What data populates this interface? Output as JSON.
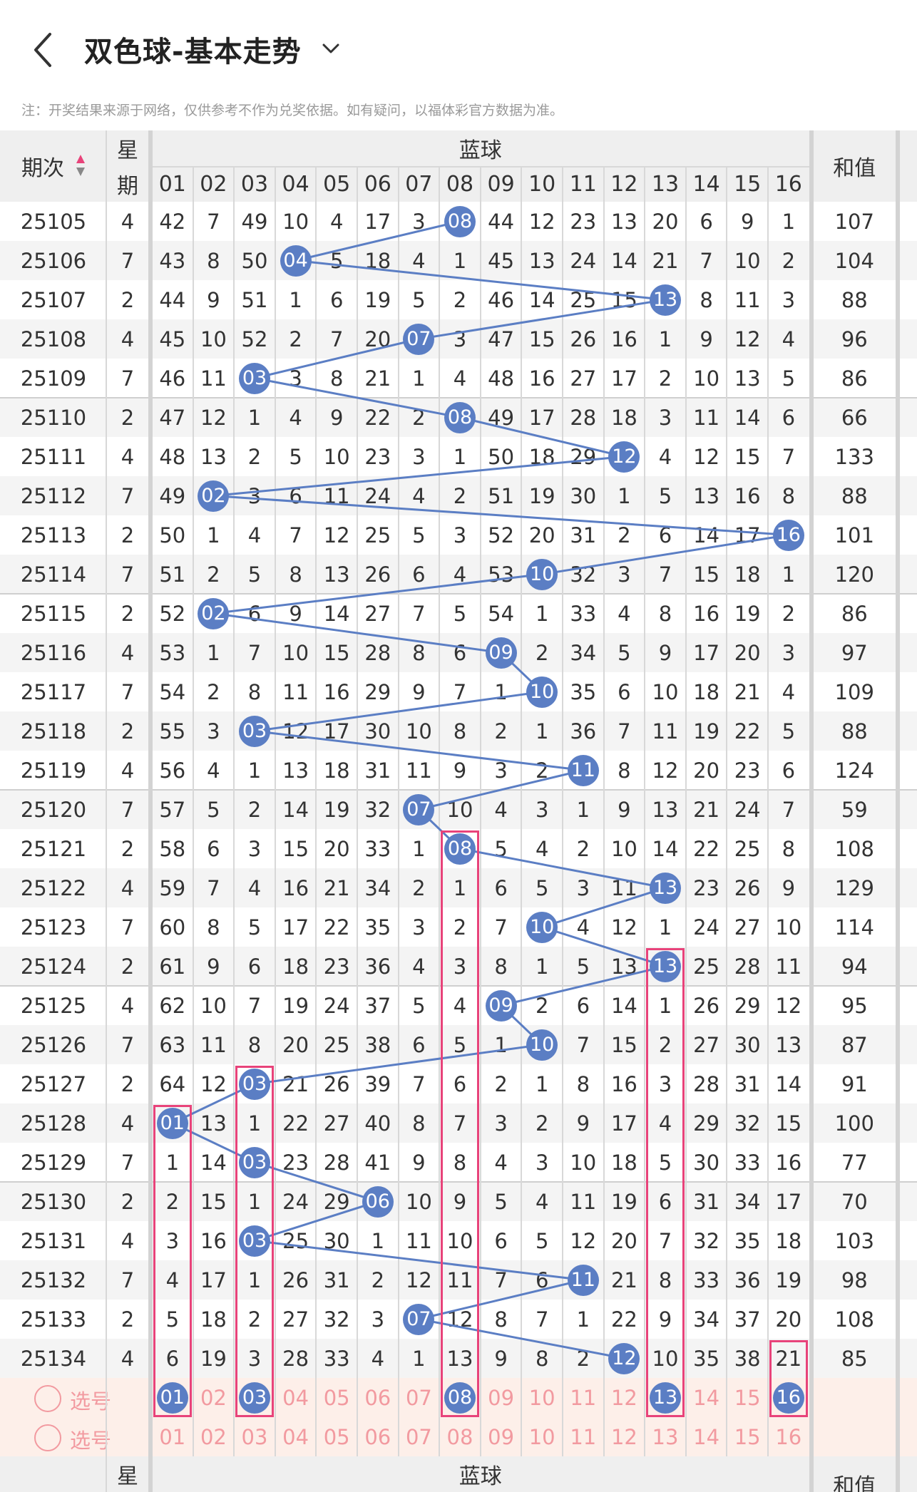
{
  "header": {
    "title": "双色球-基本走势",
    "back_icon": "chevron-left-icon",
    "dropdown_icon": "chevron-down-icon"
  },
  "note": "注：开奖结果来源于网络，仅供参考不作为兑奖依据。如有疑问，以福体彩官方数据为准。",
  "table": {
    "col_issue": "期次",
    "col_weekday_top": "星",
    "col_weekday_bottom": "期",
    "group_label": "蓝球",
    "col_sum": "和值",
    "numbers": [
      "01",
      "02",
      "03",
      "04",
      "05",
      "06",
      "07",
      "08",
      "09",
      "10",
      "11",
      "12",
      "13",
      "14",
      "15",
      "16"
    ],
    "rows": [
      {
        "issue": "25105",
        "wd": "4",
        "ball": 8,
        "cells": [
          "42",
          "7",
          "49",
          "10",
          "4",
          "17",
          "3",
          "08",
          "44",
          "12",
          "23",
          "13",
          "20",
          "6",
          "9",
          "1"
        ],
        "sum": "107"
      },
      {
        "issue": "25106",
        "wd": "7",
        "ball": 4,
        "cells": [
          "43",
          "8",
          "50",
          "04",
          "5",
          "18",
          "4",
          "1",
          "45",
          "13",
          "24",
          "14",
          "21",
          "7",
          "10",
          "2"
        ],
        "sum": "104"
      },
      {
        "issue": "25107",
        "wd": "2",
        "ball": 13,
        "cells": [
          "44",
          "9",
          "51",
          "1",
          "6",
          "19",
          "5",
          "2",
          "46",
          "14",
          "25",
          "15",
          "13",
          "8",
          "11",
          "3"
        ],
        "sum": "88"
      },
      {
        "issue": "25108",
        "wd": "4",
        "ball": 7,
        "cells": [
          "45",
          "10",
          "52",
          "2",
          "7",
          "20",
          "07",
          "3",
          "47",
          "15",
          "26",
          "16",
          "1",
          "9",
          "12",
          "4"
        ],
        "sum": "96"
      },
      {
        "issue": "25109",
        "wd": "7",
        "ball": 3,
        "cells": [
          "46",
          "11",
          "03",
          "3",
          "8",
          "21",
          "1",
          "4",
          "48",
          "16",
          "27",
          "17",
          "2",
          "10",
          "13",
          "5"
        ],
        "sum": "86"
      },
      {
        "issue": "25110",
        "wd": "2",
        "ball": 8,
        "cells": [
          "47",
          "12",
          "1",
          "4",
          "9",
          "22",
          "2",
          "08",
          "49",
          "17",
          "28",
          "18",
          "3",
          "11",
          "14",
          "6"
        ],
        "sum": "66"
      },
      {
        "issue": "25111",
        "wd": "4",
        "ball": 12,
        "cells": [
          "48",
          "13",
          "2",
          "5",
          "10",
          "23",
          "3",
          "1",
          "50",
          "18",
          "29",
          "12",
          "4",
          "12",
          "15",
          "7"
        ],
        "sum": "133"
      },
      {
        "issue": "25112",
        "wd": "7",
        "ball": 2,
        "cells": [
          "49",
          "02",
          "3",
          "6",
          "11",
          "24",
          "4",
          "2",
          "51",
          "19",
          "30",
          "1",
          "5",
          "13",
          "16",
          "8"
        ],
        "sum": "88"
      },
      {
        "issue": "25113",
        "wd": "2",
        "ball": 16,
        "cells": [
          "50",
          "1",
          "4",
          "7",
          "12",
          "25",
          "5",
          "3",
          "52",
          "20",
          "31",
          "2",
          "6",
          "14",
          "17",
          "16"
        ],
        "sum": "101"
      },
      {
        "issue": "25114",
        "wd": "7",
        "ball": 10,
        "cells": [
          "51",
          "2",
          "5",
          "8",
          "13",
          "26",
          "6",
          "4",
          "53",
          "10",
          "32",
          "3",
          "7",
          "15",
          "18",
          "1"
        ],
        "sum": "120"
      },
      {
        "issue": "25115",
        "wd": "2",
        "ball": 2,
        "cells": [
          "52",
          "02",
          "6",
          "9",
          "14",
          "27",
          "7",
          "5",
          "54",
          "1",
          "33",
          "4",
          "8",
          "16",
          "19",
          "2"
        ],
        "sum": "86"
      },
      {
        "issue": "25116",
        "wd": "4",
        "ball": 9,
        "cells": [
          "53",
          "1",
          "7",
          "10",
          "15",
          "28",
          "8",
          "6",
          "09",
          "2",
          "34",
          "5",
          "9",
          "17",
          "20",
          "3"
        ],
        "sum": "97"
      },
      {
        "issue": "25117",
        "wd": "7",
        "ball": 10,
        "cells": [
          "54",
          "2",
          "8",
          "11",
          "16",
          "29",
          "9",
          "7",
          "1",
          "10",
          "35",
          "6",
          "10",
          "18",
          "21",
          "4"
        ],
        "sum": "109"
      },
      {
        "issue": "25118",
        "wd": "2",
        "ball": 3,
        "cells": [
          "55",
          "3",
          "03",
          "12",
          "17",
          "30",
          "10",
          "8",
          "2",
          "1",
          "36",
          "7",
          "11",
          "19",
          "22",
          "5"
        ],
        "sum": "88"
      },
      {
        "issue": "25119",
        "wd": "4",
        "ball": 11,
        "cells": [
          "56",
          "4",
          "1",
          "13",
          "18",
          "31",
          "11",
          "9",
          "3",
          "2",
          "11",
          "8",
          "12",
          "20",
          "23",
          "6"
        ],
        "sum": "124"
      },
      {
        "issue": "25120",
        "wd": "7",
        "ball": 7,
        "cells": [
          "57",
          "5",
          "2",
          "14",
          "19",
          "32",
          "07",
          "10",
          "4",
          "3",
          "1",
          "9",
          "13",
          "21",
          "24",
          "7"
        ],
        "sum": "59"
      },
      {
        "issue": "25121",
        "wd": "2",
        "ball": 8,
        "cells": [
          "58",
          "6",
          "3",
          "15",
          "20",
          "33",
          "1",
          "08",
          "5",
          "4",
          "2",
          "10",
          "14",
          "22",
          "25",
          "8"
        ],
        "sum": "108"
      },
      {
        "issue": "25122",
        "wd": "4",
        "ball": 13,
        "cells": [
          "59",
          "7",
          "4",
          "16",
          "21",
          "34",
          "2",
          "1",
          "6",
          "5",
          "3",
          "11",
          "13",
          "23",
          "26",
          "9"
        ],
        "sum": "129"
      },
      {
        "issue": "25123",
        "wd": "7",
        "ball": 10,
        "cells": [
          "60",
          "8",
          "5",
          "17",
          "22",
          "35",
          "3",
          "2",
          "7",
          "10",
          "4",
          "12",
          "1",
          "24",
          "27",
          "10"
        ],
        "sum": "114"
      },
      {
        "issue": "25124",
        "wd": "2",
        "ball": 13,
        "cells": [
          "61",
          "9",
          "6",
          "18",
          "23",
          "36",
          "4",
          "3",
          "8",
          "1",
          "5",
          "13",
          "13",
          "25",
          "28",
          "11"
        ],
        "sum": "94"
      },
      {
        "issue": "25125",
        "wd": "4",
        "ball": 9,
        "cells": [
          "62",
          "10",
          "7",
          "19",
          "24",
          "37",
          "5",
          "4",
          "09",
          "2",
          "6",
          "14",
          "1",
          "26",
          "29",
          "12"
        ],
        "sum": "95"
      },
      {
        "issue": "25126",
        "wd": "7",
        "ball": 10,
        "cells": [
          "63",
          "11",
          "8",
          "20",
          "25",
          "38",
          "6",
          "5",
          "1",
          "10",
          "7",
          "15",
          "2",
          "27",
          "30",
          "13"
        ],
        "sum": "87"
      },
      {
        "issue": "25127",
        "wd": "2",
        "ball": 3,
        "cells": [
          "64",
          "12",
          "03",
          "21",
          "26",
          "39",
          "7",
          "6",
          "2",
          "1",
          "8",
          "16",
          "3",
          "28",
          "31",
          "14"
        ],
        "sum": "91"
      },
      {
        "issue": "25128",
        "wd": "4",
        "ball": 1,
        "cells": [
          "01",
          "13",
          "1",
          "22",
          "27",
          "40",
          "8",
          "7",
          "3",
          "2",
          "9",
          "17",
          "4",
          "29",
          "32",
          "15"
        ],
        "sum": "100"
      },
      {
        "issue": "25129",
        "wd": "7",
        "ball": 3,
        "cells": [
          "1",
          "14",
          "03",
          "23",
          "28",
          "41",
          "9",
          "8",
          "4",
          "3",
          "10",
          "18",
          "5",
          "30",
          "33",
          "16"
        ],
        "sum": "77"
      },
      {
        "issue": "25130",
        "wd": "2",
        "ball": 6,
        "cells": [
          "2",
          "15",
          "1",
          "24",
          "29",
          "06",
          "10",
          "9",
          "5",
          "4",
          "11",
          "19",
          "6",
          "31",
          "34",
          "17"
        ],
        "sum": "70"
      },
      {
        "issue": "25131",
        "wd": "4",
        "ball": 3,
        "cells": [
          "3",
          "16",
          "03",
          "25",
          "30",
          "1",
          "11",
          "10",
          "6",
          "5",
          "12",
          "20",
          "7",
          "32",
          "35",
          "18"
        ],
        "sum": "103"
      },
      {
        "issue": "25132",
        "wd": "7",
        "ball": 11,
        "cells": [
          "4",
          "17",
          "1",
          "26",
          "31",
          "2",
          "12",
          "11",
          "7",
          "6",
          "11",
          "21",
          "8",
          "33",
          "36",
          "19"
        ],
        "sum": "98"
      },
      {
        "issue": "25133",
        "wd": "2",
        "ball": 7,
        "cells": [
          "5",
          "18",
          "2",
          "27",
          "32",
          "3",
          "07",
          "12",
          "8",
          "7",
          "1",
          "22",
          "9",
          "34",
          "37",
          "20"
        ],
        "sum": "108"
      },
      {
        "issue": "25134",
        "wd": "4",
        "ball": 12,
        "cells": [
          "6",
          "19",
          "3",
          "28",
          "33",
          "4",
          "1",
          "13",
          "9",
          "8",
          "2",
          "12",
          "10",
          "35",
          "38",
          "21"
        ],
        "sum": "85"
      }
    ],
    "pick_rows": [
      {
        "label": "选号",
        "selected": [
          1,
          3,
          8,
          13,
          16
        ]
      },
      {
        "label": "选号",
        "selected": []
      }
    ],
    "highlight_columns": [
      1,
      3,
      8,
      13,
      16
    ],
    "colors": {
      "ball": "#5b7ec4",
      "line": "#5b7ec4",
      "highlight": "#e8437a",
      "pick_text": "#f29aa0",
      "pick_bg": "#fdefe9",
      "alt_row": "#f4f4f4",
      "header_bg": "#efefef"
    }
  }
}
